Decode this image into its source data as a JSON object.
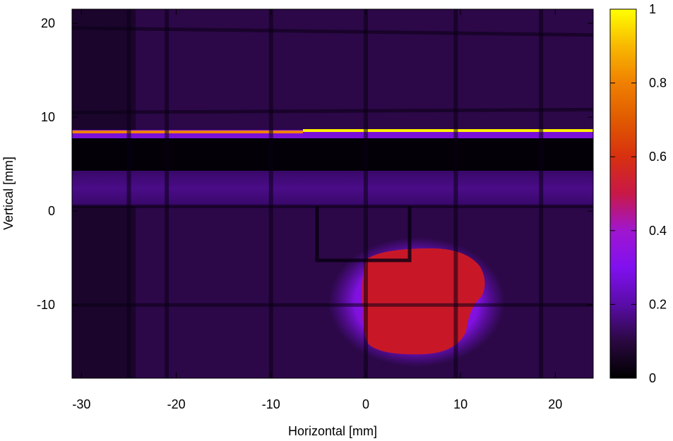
{
  "chart_data": {
    "type": "heatmap",
    "xlabel": "Horizontal [mm]",
    "ylabel": "Vertical [mm]",
    "xlim": [
      -31,
      24
    ],
    "ylim": [
      -17.8,
      21.5
    ],
    "x_ticks": [
      -30,
      -20,
      -10,
      0,
      10,
      20
    ],
    "x_tick_labels": [
      "-30",
      "-20",
      "-10",
      "0",
      "10",
      "20"
    ],
    "y_ticks": [
      -10,
      0,
      10,
      20
    ],
    "y_tick_labels": [
      "-10",
      "0",
      "10",
      "20"
    ],
    "colorbar": {
      "min": 0,
      "max": 1,
      "ticks": [
        0,
        0.2,
        0.4,
        0.6,
        0.8,
        1
      ],
      "tick_labels": [
        "0",
        "0.2",
        "0.4",
        "0.6",
        "0.8",
        "1"
      ],
      "colormap": "gnuplot-hot",
      "colors": [
        "#000000",
        "#3a0a5a",
        "#6a10c8",
        "#9a18c8",
        "#c81828",
        "#e06000",
        "#f8b000",
        "#ffff00"
      ]
    },
    "background_level": 0.08,
    "features": {
      "beam_spot": {
        "x_range": [
          0,
          12
        ],
        "y_range": [
          -15,
          -4
        ],
        "value": 0.5
      },
      "bright_line": {
        "y": 8.4,
        "x_range": [
          -31,
          24
        ],
        "value": 1.0
      },
      "dark_band": {
        "y_range": [
          4.3,
          8.0
        ],
        "value": 0.0
      },
      "lighter_band": {
        "y_range": [
          0.5,
          4.3
        ],
        "value": 0.12
      },
      "vertical_grid_lines_x": [
        -25,
        -21,
        -10,
        0,
        9.5,
        18.5
      ],
      "horizontal_grid_lines_y": [
        19.5,
        10.5,
        0.5,
        -10
      ],
      "inner_frame": {
        "x_range": [
          -5,
          4.5
        ],
        "y_range": [
          -5,
          0
        ]
      }
    }
  }
}
